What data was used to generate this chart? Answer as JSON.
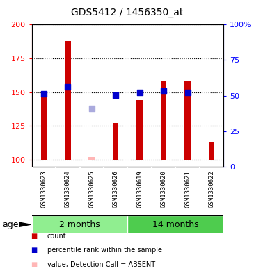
{
  "title": "GDS5412 / 1456350_at",
  "samples": [
    "GSM1330623",
    "GSM1330624",
    "GSM1330625",
    "GSM1330626",
    "GSM1330619",
    "GSM1330620",
    "GSM1330621",
    "GSM1330622"
  ],
  "counts": [
    148,
    188,
    102,
    127,
    144,
    158,
    158,
    113
  ],
  "percentile_ranks": [
    49,
    54,
    null,
    48,
    50,
    51,
    50,
    null
  ],
  "absent_values": [
    null,
    null,
    102,
    null,
    null,
    null,
    null,
    null
  ],
  "absent_ranks": [
    null,
    null,
    38,
    null,
    null,
    null,
    null,
    null
  ],
  "ylim_left": [
    95,
    200
  ],
  "ylim_right": [
    0,
    100
  ],
  "yticks_left": [
    100,
    125,
    150,
    175,
    200
  ],
  "yticks_right": [
    0,
    25,
    50,
    75,
    100
  ],
  "ytick_labels_left": [
    "100",
    "125",
    "150",
    "175",
    "200"
  ],
  "ytick_labels_right": [
    "0",
    "25",
    "50",
    "75",
    "100%"
  ],
  "bar_color": "#CC0000",
  "dot_color": "#0000CC",
  "absent_value_color": "#FFB6B6",
  "absent_rank_color": "#AAAADD",
  "bar_base": 100,
  "bar_width": 0.25,
  "grid_color": "black",
  "plot_bg": "#FFFFFF",
  "label_bg": "#D3D3D3",
  "group_color_1": "#90EE90",
  "group_color_2": "#4ECC4E",
  "group_label_1": "2 months",
  "group_label_2": "14 months",
  "age_label": "age",
  "legend_items": [
    {
      "color": "#CC0000",
      "label": "count"
    },
    {
      "color": "#0000CC",
      "label": "percentile rank within the sample"
    },
    {
      "color": "#FFB6B6",
      "label": "value, Detection Call = ABSENT"
    },
    {
      "color": "#AAAADD",
      "label": "rank, Detection Call = ABSENT"
    }
  ]
}
